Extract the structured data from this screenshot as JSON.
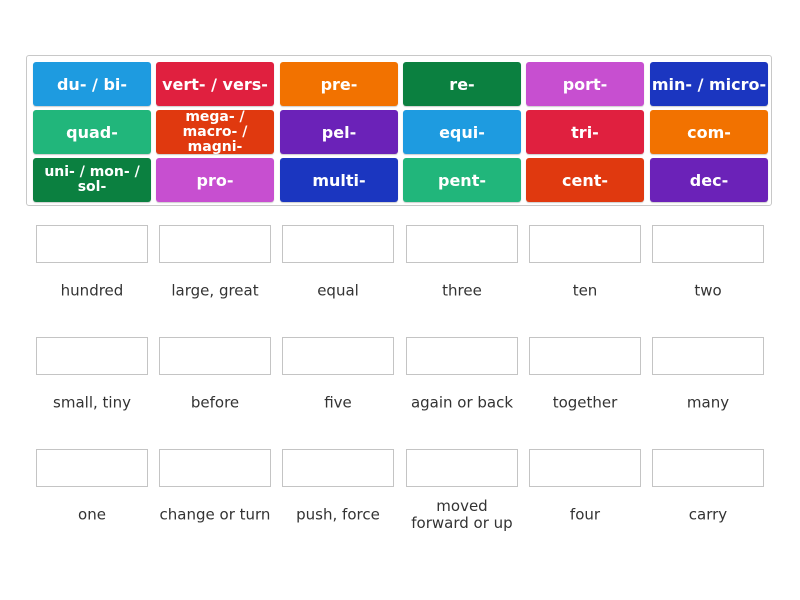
{
  "tiles": [
    {
      "label": "du- / bi-",
      "color": "#1e9be0"
    },
    {
      "label": "vert- / vers-",
      "color": "#e0203f"
    },
    {
      "label": "pre-",
      "color": "#f27200"
    },
    {
      "label": "re-",
      "color": "#0b8040"
    },
    {
      "label": "port-",
      "color": "#c74fd0"
    },
    {
      "label": "min- / micro-",
      "color": "#1b36c0"
    },
    {
      "label": "quad-",
      "color": "#21b67b"
    },
    {
      "label": "mega- / macro- / magni-",
      "color": "#e0390f"
    },
    {
      "label": "pel-",
      "color": "#6b22b8"
    },
    {
      "label": "equi-",
      "color": "#1e9be0"
    },
    {
      "label": "tri-",
      "color": "#e0203f"
    },
    {
      "label": "com-",
      "color": "#f27200"
    },
    {
      "label": "uni- / mon- / sol-",
      "color": "#0b8040"
    },
    {
      "label": "pro-",
      "color": "#c74fd0"
    },
    {
      "label": "multi-",
      "color": "#1b36c0"
    },
    {
      "label": "pent-",
      "color": "#21b67b"
    },
    {
      "label": "cent-",
      "color": "#e0390f"
    },
    {
      "label": "dec-",
      "color": "#6b22b8"
    }
  ],
  "targets": [
    {
      "label": "hundred"
    },
    {
      "label": "large, great"
    },
    {
      "label": "equal"
    },
    {
      "label": "three"
    },
    {
      "label": "ten"
    },
    {
      "label": "two"
    },
    {
      "label": "small, tiny"
    },
    {
      "label": "before"
    },
    {
      "label": "five"
    },
    {
      "label": "again or back"
    },
    {
      "label": "together"
    },
    {
      "label": "many"
    },
    {
      "label": "one"
    },
    {
      "label": "change or turn"
    },
    {
      "label": "push, force"
    },
    {
      "label": "moved forward or up"
    },
    {
      "label": "four"
    },
    {
      "label": "carry"
    }
  ]
}
